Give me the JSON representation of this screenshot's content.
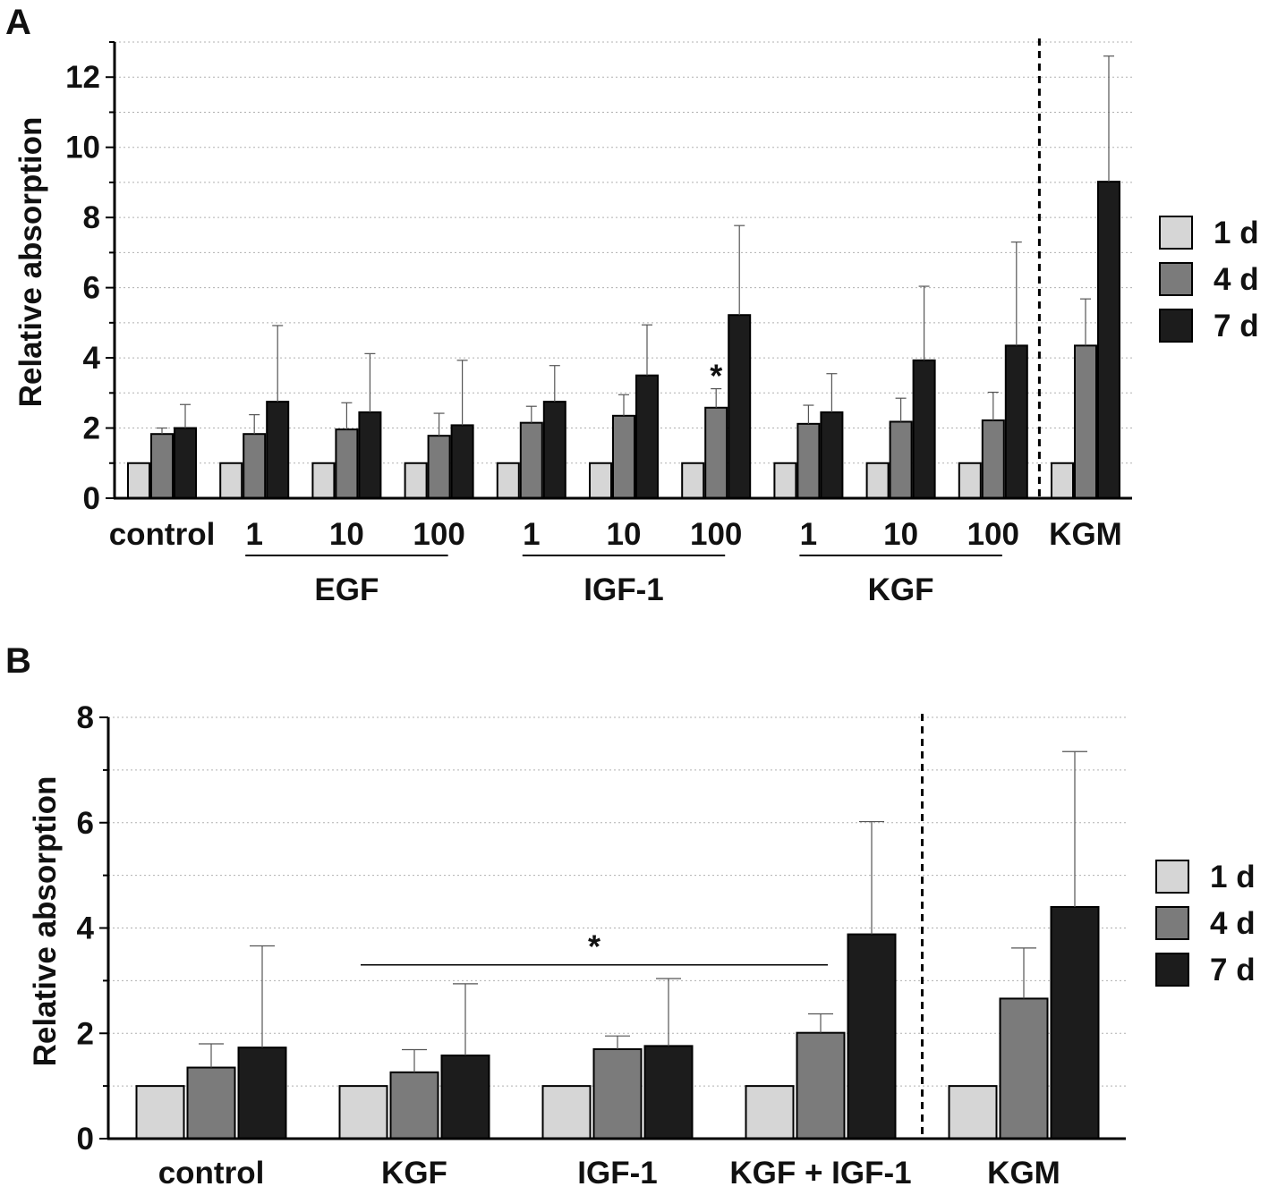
{
  "chart_data": [
    {
      "panel_label": "A",
      "type": "bar",
      "ylabel": "Relative absorption",
      "ylim": [
        0,
        13
      ],
      "yticks": [
        0,
        2,
        4,
        6,
        8,
        10,
        12
      ],
      "grid": true,
      "legend_position": "right",
      "series_names": [
        "1 d",
        "4 d",
        "7 d"
      ],
      "colors": [
        "#d6d6d6",
        "#7b7b7b",
        "#1c1c1c"
      ],
      "groups": [
        {
          "label": "control",
          "group": null,
          "values": [
            1.0,
            1.83,
            2.0
          ],
          "errors": [
            null,
            2.0,
            2.67
          ],
          "star": false
        },
        {
          "label": "1",
          "group": "EGF",
          "values": [
            1.0,
            1.83,
            2.75
          ],
          "errors": [
            null,
            2.38,
            4.92
          ],
          "star": false
        },
        {
          "label": "10",
          "group": "EGF",
          "values": [
            1.0,
            1.96,
            2.45
          ],
          "errors": [
            null,
            2.72,
            4.12
          ],
          "star": false
        },
        {
          "label": "100",
          "group": "EGF",
          "values": [
            1.0,
            1.78,
            2.08
          ],
          "errors": [
            null,
            2.42,
            3.93
          ],
          "star": false
        },
        {
          "label": "1",
          "group": "IGF-1",
          "values": [
            1.0,
            2.15,
            2.75
          ],
          "errors": [
            null,
            2.62,
            3.78
          ],
          "star": false
        },
        {
          "label": "10",
          "group": "IGF-1",
          "values": [
            1.0,
            2.35,
            3.5
          ],
          "errors": [
            null,
            2.95,
            4.94
          ],
          "star": false
        },
        {
          "label": "100",
          "group": "IGF-1",
          "values": [
            1.0,
            2.58,
            5.22
          ],
          "errors": [
            null,
            3.12,
            7.77
          ],
          "star": true
        },
        {
          "label": "1",
          "group": "KGF",
          "values": [
            1.0,
            2.12,
            2.45
          ],
          "errors": [
            null,
            2.65,
            3.55
          ],
          "star": false
        },
        {
          "label": "10",
          "group": "KGF",
          "values": [
            1.0,
            2.18,
            3.93
          ],
          "errors": [
            null,
            2.85,
            6.04
          ],
          "star": false
        },
        {
          "label": "100",
          "group": "KGF",
          "values": [
            1.0,
            2.22,
            4.35
          ],
          "errors": [
            null,
            3.02,
            7.3
          ],
          "star": false
        },
        {
          "label": "KGM",
          "group": null,
          "values": [
            1.0,
            4.35,
            9.02
          ],
          "errors": [
            null,
            5.68,
            12.6
          ],
          "star": false
        }
      ],
      "group_labels": [
        "EGF",
        "IGF-1",
        "KGF"
      ],
      "star_text": "*"
    },
    {
      "panel_label": "B",
      "type": "bar",
      "ylabel": "Relative absorption",
      "ylim": [
        0,
        8
      ],
      "yticks": [
        0,
        2,
        4,
        6,
        8
      ],
      "grid": true,
      "legend_position": "right",
      "series_names": [
        "1 d",
        "4 d",
        "7 d"
      ],
      "colors": [
        "#d6d6d6",
        "#7b7b7b",
        "#1c1c1c"
      ],
      "groups": [
        {
          "label": "control",
          "values": [
            1.0,
            1.35,
            1.73
          ],
          "errors": [
            null,
            1.8,
            3.66
          ]
        },
        {
          "label": "KGF",
          "values": [
            1.0,
            1.26,
            1.58
          ],
          "errors": [
            null,
            1.69,
            2.94
          ]
        },
        {
          "label": "IGF-1",
          "values": [
            1.0,
            1.7,
            1.76
          ],
          "errors": [
            null,
            1.95,
            3.04
          ]
        },
        {
          "label": "KGF + IGF-1",
          "values": [
            1.0,
            2.01,
            3.88
          ],
          "errors": [
            null,
            2.37,
            6.02
          ]
        },
        {
          "label": "KGM",
          "values": [
            1.0,
            2.66,
            4.4
          ],
          "errors": [
            null,
            3.62,
            7.35
          ]
        }
      ],
      "significance": {
        "text": "*",
        "from_group": "KGF",
        "to_group": "KGF + IGF-1",
        "y": 3.3
      }
    }
  ]
}
